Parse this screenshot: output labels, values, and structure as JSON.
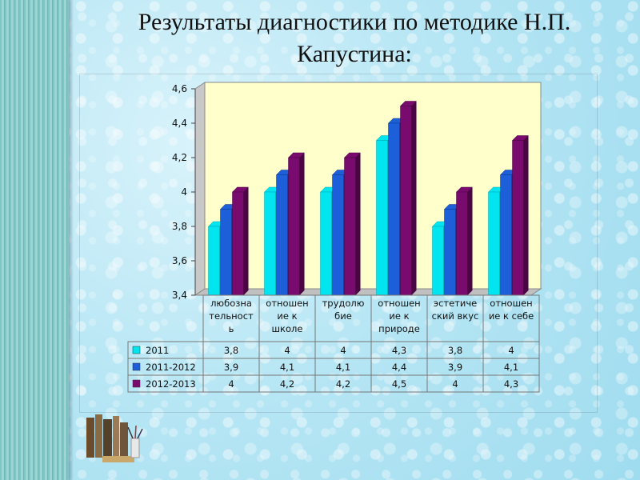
{
  "slide": {
    "title_line1": "Результаты диагностики по методике Н.П.",
    "title_line2": "Капустина:"
  },
  "chart_data": {
    "type": "bar",
    "categories": [
      [
        "любозна",
        "тельност",
        "ь"
      ],
      [
        "отношен",
        "ие к",
        "школе"
      ],
      [
        "трудолю",
        "бие"
      ],
      [
        "отношен",
        "ие к",
        "природе"
      ],
      [
        "эстетиче",
        "ский вкус"
      ],
      [
        "отношен",
        "ие к себе"
      ]
    ],
    "series": [
      {
        "name": "2011",
        "values": [
          3.8,
          4,
          4,
          4.3,
          3.8,
          4
        ],
        "labels": [
          "3,8",
          "4",
          "4",
          "4,3",
          "3,8",
          "4"
        ],
        "color": "#00E5F0",
        "side": "#00A9B4"
      },
      {
        "name": "2011-2012",
        "values": [
          3.9,
          4.1,
          4.1,
          4.4,
          3.9,
          4.1
        ],
        "labels": [
          "3,9",
          "4,1",
          "4,1",
          "4,4",
          "3,9",
          "4,1"
        ],
        "color": "#1C5FD9",
        "side": "#0E3A8E"
      },
      {
        "name": "2012-2013",
        "values": [
          4,
          4.2,
          4.2,
          4.5,
          4,
          4.3
        ],
        "labels": [
          "4",
          "4,2",
          "4,2",
          "4,5",
          "4",
          "4,3"
        ],
        "color": "#7A0B6E",
        "side": "#4A0542"
      }
    ],
    "yticks": [
      "3,4",
      "3,6",
      "3,8",
      "4",
      "4,2",
      "4,4",
      "4,6"
    ],
    "ylim": [
      3.4,
      4.6
    ],
    "grid": false,
    "legend": "data-table",
    "plot_color": "#FFFFCC"
  }
}
